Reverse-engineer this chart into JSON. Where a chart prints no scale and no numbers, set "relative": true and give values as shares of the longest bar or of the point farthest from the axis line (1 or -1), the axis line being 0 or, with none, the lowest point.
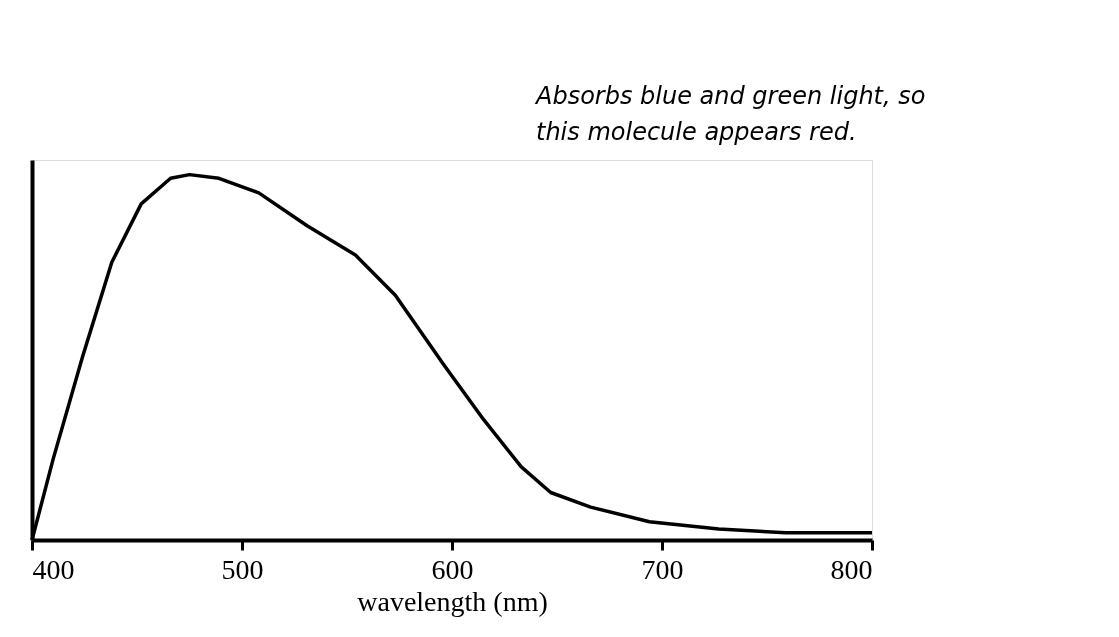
{
  "chart_data": {
    "type": "line",
    "relative": true,
    "xlabel": "wavelength (nm)",
    "xlim": [
      400,
      800
    ],
    "xticks": [
      400,
      500,
      600,
      700,
      800
    ],
    "grid": false,
    "legend": false,
    "marker": "none",
    "line_style": "solid",
    "annotations": [
      "Absorbs blue and green light, so this molecule appears red."
    ],
    "x": [
      400,
      410,
      424,
      438,
      452,
      466,
      475,
      489,
      508,
      531,
      554,
      573,
      596,
      615,
      633,
      647,
      666,
      694,
      727,
      759,
      800
    ],
    "series": [
      {
        "color": "#000000",
        "values": [
          0,
          0.22,
          0.5,
          0.76,
          0.92,
          0.99,
          1,
          0.99,
          0.95,
          0.86,
          0.78,
          0.67,
          0.48,
          0.33,
          0.2,
          0.13,
          0.09,
          0.05,
          0.03,
          0.02,
          0.02
        ]
      }
    ]
  }
}
